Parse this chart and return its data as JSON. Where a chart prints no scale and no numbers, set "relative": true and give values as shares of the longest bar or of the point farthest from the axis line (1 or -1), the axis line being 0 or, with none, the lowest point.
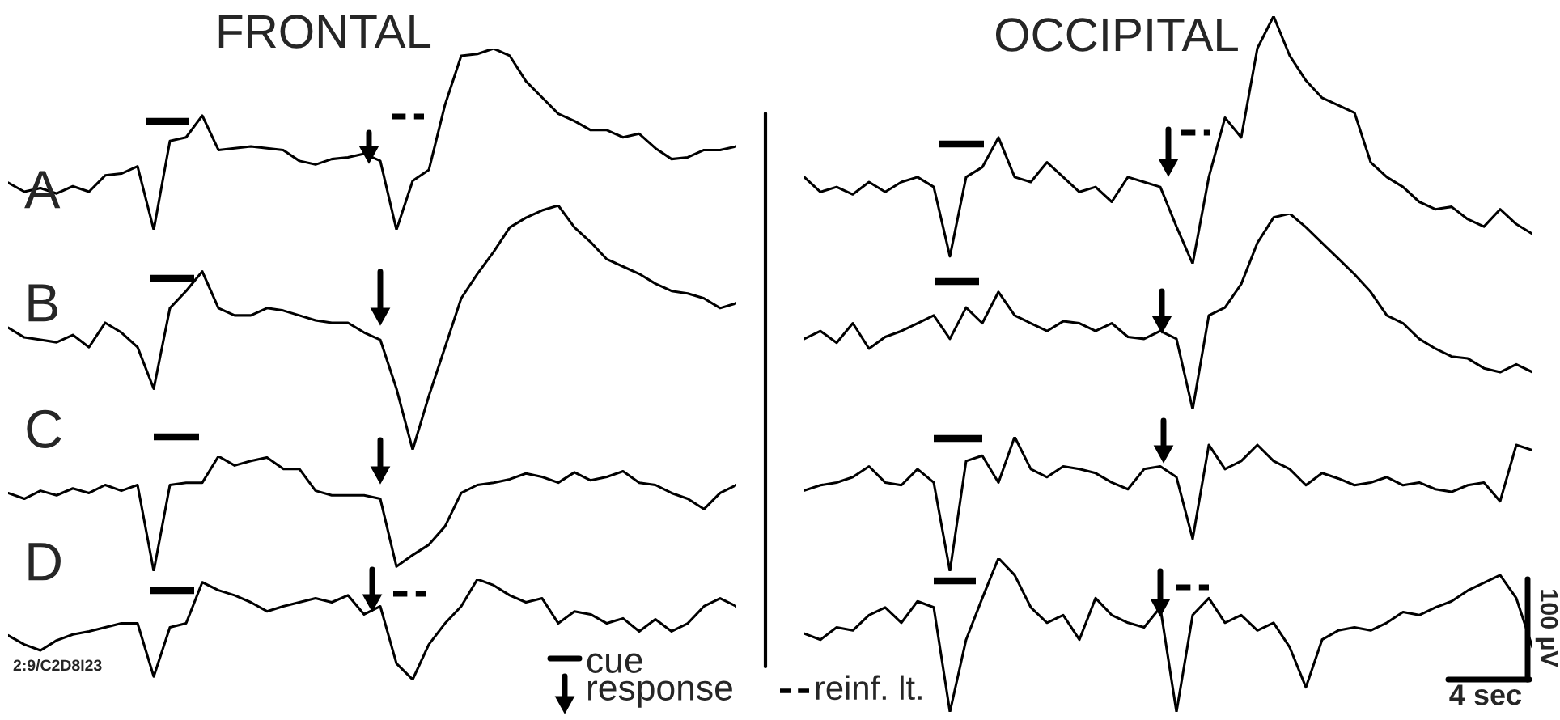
{
  "chart_data": [
    {
      "type": "line",
      "relative": true,
      "title": "FRONTAL",
      "annotations": [
        "A"
      ],
      "color": "#000000",
      "categories": [
        null,
        null,
        null,
        null,
        null,
        null,
        null,
        null,
        null,
        null,
        null,
        null,
        null,
        null,
        null,
        null,
        null,
        null,
        null,
        null,
        null,
        null,
        null,
        null,
        null,
        null,
        null,
        null,
        null,
        null,
        null,
        null,
        null,
        null,
        null,
        null,
        null,
        null,
        null,
        null,
        null,
        null,
        null,
        null,
        null,
        null
      ],
      "values": [
        0.26,
        0.21,
        0.23,
        0.2,
        0.24,
        0.21,
        0.3,
        0.31,
        0.35,
        0.0,
        0.49,
        0.51,
        0.63,
        0.44,
        0.45,
        0.46,
        0.45,
        0.44,
        0.38,
        0.36,
        0.39,
        0.4,
        0.42,
        0.38,
        0.0,
        0.27,
        0.33,
        0.69,
        0.96,
        0.97,
        1.0,
        0.96,
        0.82,
        0.73,
        0.64,
        0.6,
        0.55,
        0.55,
        0.51,
        0.53,
        0.45,
        0.39,
        0.4,
        0.44,
        0.44,
        0.46
      ]
    },
    {
      "type": "line",
      "relative": true,
      "annotations": [
        "B"
      ],
      "color": "#000000",
      "categories": [
        null,
        null,
        null,
        null,
        null,
        null,
        null,
        null,
        null,
        null,
        null,
        null,
        null,
        null,
        null,
        null,
        null,
        null,
        null,
        null,
        null,
        null,
        null,
        null,
        null,
        null,
        null,
        null,
        null,
        null,
        null,
        null,
        null,
        null,
        null,
        null,
        null,
        null,
        null,
        null,
        null,
        null,
        null,
        null,
        null,
        null
      ],
      "values": [
        0.5,
        0.46,
        0.45,
        0.44,
        0.47,
        0.42,
        0.52,
        0.48,
        0.42,
        0.25,
        0.58,
        0.65,
        0.73,
        0.58,
        0.55,
        0.55,
        0.58,
        0.57,
        0.55,
        0.53,
        0.52,
        0.52,
        0.48,
        0.45,
        0.25,
        0.0,
        0.22,
        0.42,
        0.62,
        0.72,
        0.81,
        0.91,
        0.95,
        0.98,
        1.0,
        0.91,
        0.85,
        0.78,
        0.75,
        0.72,
        0.68,
        0.65,
        0.64,
        0.62,
        0.58,
        0.6
      ]
    },
    {
      "type": "line",
      "relative": true,
      "annotations": [
        "C"
      ],
      "color": "#000000",
      "categories": [
        null,
        null,
        null,
        null,
        null,
        null,
        null,
        null,
        null,
        null,
        null,
        null,
        null,
        null,
        null,
        null,
        null,
        null,
        null,
        null,
        null,
        null,
        null,
        null,
        null,
        null,
        null,
        null,
        null,
        null,
        null,
        null,
        null,
        null,
        null,
        null,
        null,
        null,
        null,
        null,
        null,
        null,
        null,
        null,
        null,
        null
      ],
      "values": [
        0.68,
        0.63,
        0.7,
        0.66,
        0.72,
        0.68,
        0.75,
        0.7,
        0.75,
        0.0,
        0.75,
        0.77,
        0.77,
        1.0,
        0.92,
        0.96,
        0.99,
        0.89,
        0.89,
        0.7,
        0.66,
        0.66,
        0.66,
        0.63,
        0.04,
        0.14,
        0.23,
        0.39,
        0.68,
        0.75,
        0.77,
        0.8,
        0.85,
        0.82,
        0.77,
        0.86,
        0.79,
        0.82,
        0.87,
        0.77,
        0.75,
        0.68,
        0.63,
        0.54,
        0.68,
        0.75
      ]
    },
    {
      "type": "line",
      "relative": true,
      "annotations": [
        "D",
        "2:9/C2D8I23",
        "cue",
        "response",
        "reinf. lt."
      ],
      "color": "#000000",
      "categories": [
        null,
        null,
        null,
        null,
        null,
        null,
        null,
        null,
        null,
        null,
        null,
        null,
        null,
        null,
        null,
        null,
        null,
        null,
        null,
        null,
        null,
        null,
        null,
        null,
        null,
        null,
        null,
        null,
        null,
        null,
        null,
        null,
        null,
        null,
        null,
        null,
        null,
        null,
        null,
        null,
        null,
        null,
        null,
        null,
        null,
        null
      ],
      "values": [
        0.44,
        0.35,
        0.29,
        0.39,
        0.45,
        0.48,
        0.52,
        0.56,
        0.56,
        0.03,
        0.52,
        0.56,
        0.97,
        0.89,
        0.84,
        0.77,
        0.68,
        0.73,
        0.77,
        0.81,
        0.77,
        0.84,
        0.65,
        0.73,
        0.16,
        0.0,
        0.35,
        0.56,
        0.73,
        1.0,
        0.94,
        0.84,
        0.77,
        0.81,
        0.56,
        0.68,
        0.65,
        0.56,
        0.61,
        0.48,
        0.6,
        0.48,
        0.56,
        0.73,
        0.81,
        0.73
      ]
    },
    {
      "type": "line",
      "relative": true,
      "title": "OCCIPITAL",
      "color": "#000000",
      "categories": [
        null,
        null,
        null,
        null,
        null,
        null,
        null,
        null,
        null,
        null,
        null,
        null,
        null,
        null,
        null,
        null,
        null,
        null,
        null,
        null,
        null,
        null,
        null,
        null,
        null,
        null,
        null,
        null,
        null,
        null,
        null,
        null,
        null,
        null,
        null,
        null,
        null,
        null,
        null,
        null,
        null,
        null,
        null,
        null,
        null,
        null
      ],
      "values": [
        0.35,
        0.29,
        0.31,
        0.28,
        0.33,
        0.29,
        0.33,
        0.35,
        0.31,
        0.03,
        0.35,
        0.39,
        0.51,
        0.35,
        0.33,
        0.41,
        0.35,
        0.29,
        0.31,
        0.25,
        0.35,
        0.33,
        0.31,
        0.15,
        0.0,
        0.35,
        0.59,
        0.51,
        0.87,
        1.0,
        0.84,
        0.74,
        0.67,
        0.64,
        0.61,
        0.41,
        0.35,
        0.31,
        0.25,
        0.22,
        0.23,
        0.18,
        0.15,
        0.22,
        0.16,
        0.12
      ]
    },
    {
      "type": "line",
      "relative": true,
      "color": "#000000",
      "categories": [
        null,
        null,
        null,
        null,
        null,
        null,
        null,
        null,
        null,
        null,
        null,
        null,
        null,
        null,
        null,
        null,
        null,
        null,
        null,
        null,
        null,
        null,
        null,
        null,
        null,
        null,
        null,
        null,
        null,
        null,
        null,
        null,
        null,
        null,
        null,
        null,
        null,
        null,
        null,
        null,
        null,
        null,
        null,
        null,
        null,
        null
      ],
      "values": [
        0.36,
        0.4,
        0.34,
        0.44,
        0.31,
        0.37,
        0.4,
        0.44,
        0.48,
        0.36,
        0.52,
        0.44,
        0.6,
        0.48,
        0.44,
        0.4,
        0.45,
        0.44,
        0.4,
        0.44,
        0.37,
        0.36,
        0.4,
        0.36,
        0.0,
        0.48,
        0.52,
        0.64,
        0.85,
        0.98,
        1.0,
        0.93,
        0.85,
        0.77,
        0.69,
        0.6,
        0.48,
        0.44,
        0.36,
        0.31,
        0.27,
        0.26,
        0.21,
        0.19,
        0.23,
        0.19
      ]
    },
    {
      "type": "line",
      "relative": true,
      "color": "#000000",
      "categories": [
        null,
        null,
        null,
        null,
        null,
        null,
        null,
        null,
        null,
        null,
        null,
        null,
        null,
        null,
        null,
        null,
        null,
        null,
        null,
        null,
        null,
        null,
        null,
        null,
        null,
        null,
        null,
        null,
        null,
        null,
        null,
        null,
        null,
        null,
        null,
        null,
        null,
        null,
        null,
        null,
        null,
        null,
        null,
        null,
        null,
        null
      ],
      "values": [
        0.6,
        0.64,
        0.66,
        0.7,
        0.78,
        0.66,
        0.64,
        0.76,
        0.66,
        0.0,
        0.82,
        0.86,
        0.66,
        1.0,
        0.76,
        0.7,
        0.78,
        0.76,
        0.73,
        0.66,
        0.61,
        0.76,
        0.78,
        0.7,
        0.24,
        0.94,
        0.76,
        0.82,
        0.94,
        0.82,
        0.76,
        0.64,
        0.73,
        0.69,
        0.64,
        0.66,
        0.7,
        0.64,
        0.66,
        0.61,
        0.59,
        0.64,
        0.66,
        0.52,
        0.94,
        0.9
      ]
    },
    {
      "type": "line",
      "relative": true,
      "annotations": [
        "100 µV",
        "4 sec"
      ],
      "color": "#000000",
      "categories": [
        null,
        null,
        null,
        null,
        null,
        null,
        null,
        null,
        null,
        null,
        null,
        null,
        null,
        null,
        null,
        null,
        null,
        null,
        null,
        null,
        null,
        null,
        null,
        null,
        null,
        null,
        null,
        null,
        null,
        null,
        null,
        null,
        null,
        null,
        null,
        null,
        null,
        null,
        null,
        null,
        null,
        null,
        null,
        null,
        null,
        null
      ],
      "values": [
        0.51,
        0.47,
        0.55,
        0.53,
        0.63,
        0.68,
        0.58,
        0.72,
        0.68,
        0.0,
        0.47,
        0.74,
        1.0,
        0.89,
        0.68,
        0.58,
        0.63,
        0.47,
        0.74,
        0.63,
        0.58,
        0.55,
        0.68,
        0.0,
        0.63,
        0.74,
        0.58,
        0.63,
        0.53,
        0.58,
        0.42,
        0.16,
        0.47,
        0.53,
        0.55,
        0.53,
        0.58,
        0.65,
        0.63,
        0.68,
        0.72,
        0.79,
        0.84,
        0.89,
        0.74,
        0.42
      ]
    }
  ]
}
